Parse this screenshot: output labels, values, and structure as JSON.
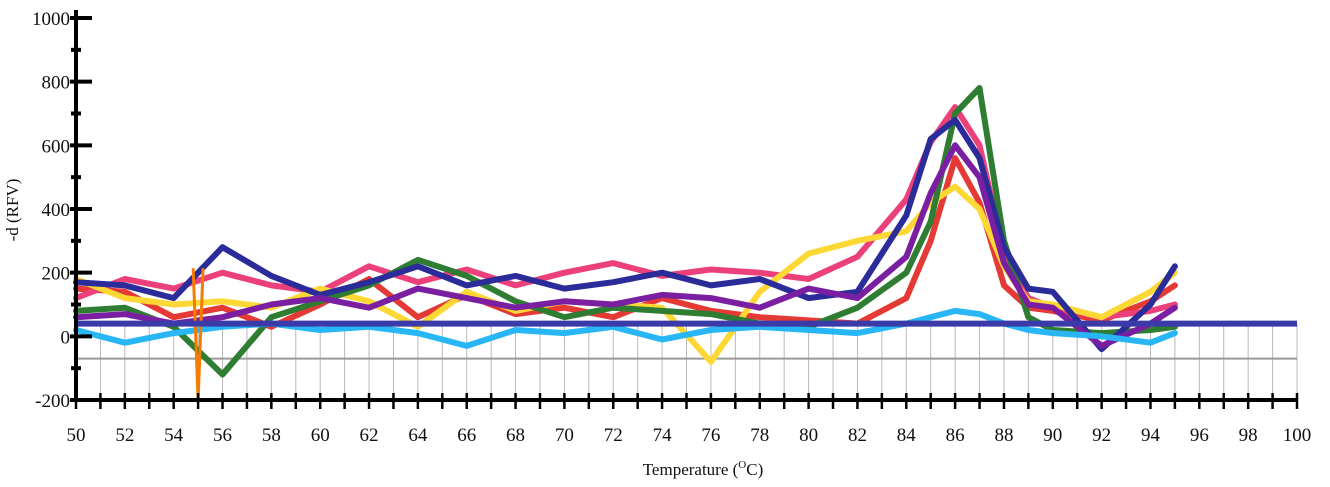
{
  "chart_data": {
    "type": "line",
    "xlabel": "Temperature (",
    "xlabel_sup": "O",
    "xlabel_unit": "C)",
    "ylabel": "-d (RFV)",
    "xlim": [
      50,
      100
    ],
    "ylim": [
      -200,
      1000
    ],
    "x_ticks": [
      "50",
      "52",
      "54",
      "56",
      "58",
      "60",
      "62",
      "64",
      "66",
      "68",
      "70",
      "72",
      "74",
      "76",
      "78",
      "80",
      "82",
      "84",
      "86",
      "88",
      "90",
      "92",
      "94",
      "96",
      "98",
      "100"
    ],
    "y_ticks": [
      "-200",
      "0",
      "200",
      "400",
      "600",
      "800",
      "1000"
    ],
    "grid": true,
    "legend": "none",
    "baseline": {
      "name": "threshold",
      "color": "#3a3aa8",
      "x": [
        50,
        100
      ],
      "y": [
        40,
        40
      ]
    },
    "series": [
      {
        "color": "#e53935",
        "x": [
          50,
          52,
          54,
          56,
          58,
          60,
          62,
          64,
          66,
          68,
          70,
          72,
          74,
          76,
          78,
          80,
          82,
          84,
          85,
          86,
          87,
          88,
          89,
          90,
          92,
          94,
          95
        ],
        "y": [
          150,
          140,
          60,
          90,
          30,
          100,
          180,
          60,
          130,
          70,
          90,
          60,
          120,
          80,
          60,
          50,
          40,
          120,
          300,
          560,
          420,
          160,
          90,
          80,
          50,
          110,
          160
        ]
      },
      {
        "color": "#ec407a",
        "x": [
          50,
          52,
          54,
          56,
          58,
          60,
          62,
          64,
          66,
          68,
          70,
          72,
          74,
          76,
          78,
          80,
          82,
          84,
          85,
          86,
          87,
          88,
          89,
          90,
          92,
          94,
          95
        ],
        "y": [
          120,
          180,
          150,
          200,
          160,
          140,
          220,
          170,
          210,
          160,
          200,
          230,
          190,
          210,
          200,
          180,
          250,
          430,
          610,
          720,
          600,
          260,
          120,
          90,
          60,
          80,
          100
        ]
      },
      {
        "color": "#fdd835",
        "x": [
          50,
          52,
          54,
          56,
          58,
          60,
          62,
          64,
          66,
          68,
          70,
          72,
          74,
          76,
          78,
          80,
          82,
          84,
          85,
          86,
          87,
          88,
          89,
          90,
          92,
          94,
          95
        ],
        "y": [
          180,
          120,
          100,
          110,
          90,
          150,
          110,
          30,
          140,
          80,
          110,
          100,
          90,
          -80,
          140,
          260,
          300,
          330,
          420,
          470,
          400,
          220,
          110,
          100,
          60,
          140,
          200
        ]
      },
      {
        "color": "#2e7d32",
        "x": [
          50,
          52,
          54,
          56,
          58,
          60,
          62,
          64,
          66,
          68,
          70,
          72,
          74,
          76,
          78,
          80,
          82,
          84,
          85,
          86,
          87,
          88,
          89,
          90,
          92,
          94,
          95
        ],
        "y": [
          80,
          90,
          30,
          -120,
          60,
          110,
          160,
          240,
          190,
          110,
          60,
          90,
          80,
          70,
          40,
          30,
          90,
          200,
          360,
          700,
          780,
          300,
          60,
          20,
          10,
          20,
          30
        ]
      },
      {
        "color": "#2b2b9a",
        "x": [
          50,
          52,
          54,
          56,
          58,
          60,
          62,
          64,
          66,
          68,
          70,
          72,
          74,
          76,
          78,
          80,
          82,
          84,
          85,
          86,
          87,
          88,
          89,
          90,
          92,
          94,
          95
        ],
        "y": [
          170,
          160,
          120,
          280,
          190,
          130,
          170,
          220,
          160,
          190,
          150,
          170,
          200,
          160,
          180,
          120,
          140,
          380,
          620,
          680,
          560,
          280,
          150,
          140,
          -40,
          100,
          220
        ]
      },
      {
        "color": "#7b1fa2",
        "x": [
          50,
          52,
          54,
          56,
          58,
          60,
          62,
          64,
          66,
          68,
          70,
          72,
          74,
          76,
          78,
          80,
          82,
          84,
          85,
          86,
          87,
          88,
          89,
          90,
          92,
          94,
          95
        ],
        "y": [
          60,
          70,
          40,
          60,
          100,
          120,
          90,
          150,
          120,
          90,
          110,
          100,
          130,
          120,
          90,
          150,
          120,
          250,
          450,
          600,
          500,
          230,
          100,
          90,
          -30,
          40,
          90
        ]
      },
      {
        "color": "#29b6f6",
        "x": [
          50,
          52,
          54,
          56,
          58,
          60,
          62,
          64,
          66,
          68,
          70,
          72,
          74,
          76,
          78,
          80,
          82,
          84,
          85,
          86,
          87,
          88,
          89,
          90,
          92,
          94,
          95
        ],
        "y": [
          20,
          -20,
          10,
          30,
          40,
          20,
          30,
          10,
          -30,
          20,
          10,
          30,
          -10,
          20,
          30,
          20,
          10,
          40,
          60,
          80,
          70,
          40,
          20,
          10,
          0,
          -20,
          10
        ]
      },
      {
        "color": "#f57c00",
        "x": [
          54.8,
          55,
          55.2
        ],
        "y": [
          210,
          -200,
          210
        ]
      }
    ]
  }
}
